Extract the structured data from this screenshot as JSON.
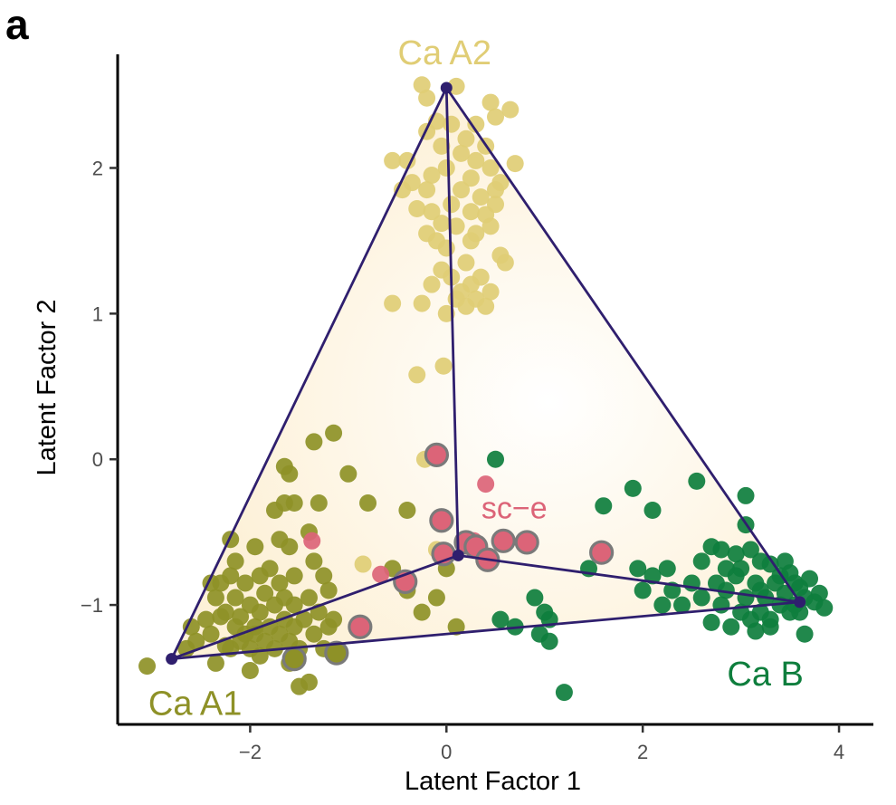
{
  "panel_label": "a",
  "colors": {
    "ca_a1": "#8e9127",
    "ca_a2": "#e0cd75",
    "ca_b": "#0e7e3d",
    "sc_e": "#dc6478",
    "simplex": "#2f1f6e",
    "highlight_ring": "#7a7a7a",
    "fill": "#fdf1d8"
  },
  "chart_data": {
    "type": "scatter",
    "title": "",
    "xlabel": "Latent Factor 1",
    "ylabel": "Latent Factor 2",
    "xlim": [
      -3.35,
      4.35
    ],
    "ylim": [
      -1.82,
      2.78
    ],
    "xticks": [
      -2,
      0,
      2,
      4
    ],
    "yticks": [
      -1,
      0,
      1,
      2
    ],
    "xtick_labels": [
      "−2",
      "0",
      "2",
      "4"
    ],
    "ytick_labels": [
      "−1",
      "0",
      "1",
      "2"
    ],
    "grid": false,
    "legend": "none",
    "vertices": [
      {
        "label": "Ca A1",
        "x": -2.8,
        "y": -1.37,
        "color_key": "ca_a1"
      },
      {
        "label": "Ca A2",
        "x": 0.0,
        "y": 2.55,
        "color_key": "ca_a2"
      },
      {
        "label": "Ca B",
        "x": 3.6,
        "y": -0.98,
        "color_key": "ca_b"
      },
      {
        "label": "sc−e",
        "x": 0.12,
        "y": -0.66,
        "color_key": "sc_e"
      }
    ],
    "series": [
      {
        "name": "Ca A2",
        "color_key": "ca_a2",
        "points": [
          [
            -0.25,
            2.57
          ],
          [
            0.1,
            2.56
          ],
          [
            -0.2,
            2.48
          ],
          [
            0.45,
            2.45
          ],
          [
            0.65,
            2.4
          ],
          [
            0.5,
            2.35
          ],
          [
            0.3,
            2.3
          ],
          [
            -0.1,
            2.32
          ],
          [
            -0.2,
            2.25
          ],
          [
            0.05,
            2.3
          ],
          [
            0.2,
            2.2
          ],
          [
            0.4,
            2.15
          ],
          [
            -0.05,
            2.15
          ],
          [
            0.15,
            2.1
          ],
          [
            0.3,
            2.05
          ],
          [
            -0.4,
            2.05
          ],
          [
            -0.55,
            2.05
          ],
          [
            0.7,
            2.03
          ],
          [
            0.45,
            2.0
          ],
          [
            0.0,
            2.0
          ],
          [
            -0.15,
            1.95
          ],
          [
            0.25,
            1.93
          ],
          [
            0.55,
            1.9
          ],
          [
            -0.35,
            1.9
          ],
          [
            0.5,
            1.85
          ],
          [
            -0.45,
            1.85
          ],
          [
            -0.2,
            1.85
          ],
          [
            0.15,
            1.85
          ],
          [
            0.35,
            1.8
          ],
          [
            0.5,
            1.75
          ],
          [
            -0.3,
            1.72
          ],
          [
            0.05,
            1.75
          ],
          [
            0.25,
            1.7
          ],
          [
            -0.15,
            1.7
          ],
          [
            0.4,
            1.68
          ],
          [
            0.45,
            1.6
          ],
          [
            -0.05,
            1.62
          ],
          [
            0.1,
            1.6
          ],
          [
            -0.2,
            1.55
          ],
          [
            0.3,
            1.55
          ],
          [
            0.25,
            1.5
          ],
          [
            -0.1,
            1.5
          ],
          [
            0.0,
            1.45
          ],
          [
            0.55,
            1.4
          ],
          [
            0.6,
            1.35
          ],
          [
            0.2,
            1.35
          ],
          [
            -0.05,
            1.3
          ],
          [
            0.35,
            1.25
          ],
          [
            0.05,
            1.25
          ],
          [
            0.25,
            1.2
          ],
          [
            0.15,
            1.15
          ],
          [
            -0.15,
            1.2
          ],
          [
            0.45,
            1.15
          ],
          [
            0.3,
            1.1
          ],
          [
            0.2,
            1.05
          ],
          [
            0.1,
            1.1
          ],
          [
            0.0,
            1.0
          ],
          [
            -0.55,
            1.07
          ],
          [
            -0.25,
            1.07
          ],
          [
            0.4,
            1.05
          ],
          [
            -0.3,
            0.58
          ],
          [
            -0.03,
            0.64
          ],
          [
            -0.22,
            0.0
          ],
          [
            -0.85,
            -0.72
          ],
          [
            -0.1,
            -0.62
          ]
        ]
      },
      {
        "name": "Ca A1",
        "color_key": "ca_a1",
        "points": [
          [
            -3.05,
            -1.42
          ],
          [
            -2.65,
            -1.3
          ],
          [
            -2.6,
            -1.15
          ],
          [
            -2.55,
            -1.25
          ],
          [
            -2.45,
            -1.1
          ],
          [
            -2.4,
            -1.2
          ],
          [
            -2.35,
            -1.4
          ],
          [
            -2.35,
            -0.95
          ],
          [
            -2.3,
            -0.85
          ],
          [
            -2.25,
            -1.28
          ],
          [
            -2.25,
            -1.05
          ],
          [
            -2.2,
            -1.3
          ],
          [
            -2.2,
            -0.8
          ],
          [
            -2.2,
            -0.55
          ],
          [
            -2.15,
            -1.15
          ],
          [
            -2.15,
            -0.95
          ],
          [
            -2.15,
            -0.7
          ],
          [
            -2.1,
            -1.25
          ],
          [
            -2.1,
            -1.08
          ],
          [
            -2.05,
            -1.2
          ],
          [
            -2.05,
            -0.85
          ],
          [
            -2.0,
            -1.45
          ],
          [
            -2.0,
            -1.3
          ],
          [
            -2.0,
            -1.0
          ],
          [
            -1.95,
            -1.15
          ],
          [
            -1.95,
            -0.6
          ],
          [
            -1.9,
            -1.35
          ],
          [
            -1.9,
            -1.05
          ],
          [
            -1.9,
            -0.8
          ],
          [
            -1.85,
            -1.25
          ],
          [
            -1.85,
            -0.92
          ],
          [
            -1.8,
            -1.15
          ],
          [
            -1.8,
            -0.75
          ],
          [
            -1.75,
            -1.3
          ],
          [
            -1.75,
            -1.0
          ],
          [
            -1.75,
            -0.35
          ],
          [
            -1.7,
            -1.2
          ],
          [
            -1.7,
            -0.85
          ],
          [
            -1.7,
            -0.55
          ],
          [
            -1.65,
            -1.1
          ],
          [
            -1.65,
            -0.95
          ],
          [
            -1.65,
            -0.3
          ],
          [
            -1.6,
            -1.25
          ],
          [
            -1.6,
            -0.6
          ],
          [
            -1.6,
            -0.1
          ],
          [
            -1.55,
            -1.15
          ],
          [
            -1.55,
            -1.0
          ],
          [
            -1.55,
            -0.8
          ],
          [
            -1.5,
            -1.56
          ],
          [
            -1.5,
            -1.3
          ],
          [
            -1.45,
            -1.1
          ],
          [
            -1.4,
            -0.95
          ],
          [
            -1.4,
            -0.5
          ],
          [
            -1.4,
            -1.53
          ],
          [
            -1.35,
            -1.2
          ],
          [
            -1.35,
            -0.7
          ],
          [
            -1.3,
            -1.05
          ],
          [
            -1.3,
            -0.3
          ],
          [
            -1.25,
            -1.3
          ],
          [
            -1.2,
            -1.15
          ],
          [
            -1.2,
            -0.9
          ],
          [
            -1.15,
            -1.1
          ],
          [
            -1.1,
            -1.35
          ],
          [
            -1.15,
            0.18
          ],
          [
            -1.35,
            0.12
          ],
          [
            -1.0,
            -0.1
          ],
          [
            -1.55,
            -0.3
          ],
          [
            -1.65,
            -0.05
          ],
          [
            -0.8,
            -0.3
          ],
          [
            -0.55,
            -0.75
          ],
          [
            -0.4,
            -0.9
          ],
          [
            -0.25,
            -1.05
          ],
          [
            -0.1,
            -0.95
          ],
          [
            0.0,
            -0.75
          ],
          [
            0.1,
            -1.15
          ],
          [
            -0.4,
            -0.35
          ],
          [
            -2.4,
            -0.85
          ],
          [
            -2.3,
            -1.08
          ],
          [
            -1.95,
            -1.2
          ],
          [
            -1.6,
            -1.4
          ],
          [
            -1.25,
            -0.8
          ]
        ]
      },
      {
        "name": "Ca B",
        "color_key": "ca_b",
        "points": [
          [
            0.5,
            0.0
          ],
          [
            1.6,
            -0.32
          ],
          [
            1.9,
            -0.2
          ],
          [
            2.1,
            -0.35
          ],
          [
            2.55,
            -0.15
          ],
          [
            3.05,
            -0.25
          ],
          [
            3.05,
            -0.45
          ],
          [
            2.7,
            -0.6
          ],
          [
            2.8,
            -0.62
          ],
          [
            2.95,
            -0.65
          ],
          [
            3.1,
            -0.62
          ],
          [
            3.2,
            -0.7
          ],
          [
            3.3,
            -0.72
          ],
          [
            3.45,
            -0.7
          ],
          [
            3.5,
            -0.78
          ],
          [
            3.55,
            -0.85
          ],
          [
            3.6,
            -0.88
          ],
          [
            3.65,
            -0.95
          ],
          [
            3.7,
            -0.82
          ],
          [
            3.75,
            -0.98
          ],
          [
            3.8,
            -0.92
          ],
          [
            3.85,
            -1.02
          ],
          [
            3.5,
            -1.05
          ],
          [
            3.45,
            -0.92
          ],
          [
            3.4,
            -1.0
          ],
          [
            3.35,
            -0.85
          ],
          [
            3.3,
            -1.1
          ],
          [
            3.25,
            -0.95
          ],
          [
            3.2,
            -1.05
          ],
          [
            3.15,
            -0.85
          ],
          [
            3.1,
            -1.1
          ],
          [
            3.05,
            -0.95
          ],
          [
            3.0,
            -1.05
          ],
          [
            2.95,
            -0.8
          ],
          [
            2.9,
            -1.15
          ],
          [
            2.85,
            -0.9
          ],
          [
            2.8,
            -1.0
          ],
          [
            2.75,
            -0.85
          ],
          [
            2.7,
            -1.12
          ],
          [
            2.6,
            -0.95
          ],
          [
            2.5,
            -0.85
          ],
          [
            2.4,
            -1.0
          ],
          [
            2.3,
            -0.9
          ],
          [
            2.25,
            -0.75
          ],
          [
            2.1,
            -0.8
          ],
          [
            2.0,
            -0.9
          ],
          [
            1.95,
            -0.75
          ],
          [
            2.2,
            -1.0
          ],
          [
            3.0,
            -0.75
          ],
          [
            3.4,
            -0.8
          ],
          [
            3.55,
            -1.0
          ],
          [
            3.6,
            -1.05
          ],
          [
            3.65,
            -1.2
          ],
          [
            3.3,
            -1.15
          ],
          [
            3.15,
            -1.18
          ],
          [
            0.9,
            -0.95
          ],
          [
            1.0,
            -1.05
          ],
          [
            1.05,
            -1.1
          ],
          [
            0.95,
            -1.2
          ],
          [
            0.7,
            -1.15
          ],
          [
            1.05,
            -1.25
          ],
          [
            0.55,
            -1.1
          ],
          [
            1.2,
            -1.6
          ],
          [
            1.45,
            -0.75
          ],
          [
            2.6,
            -0.7
          ],
          [
            2.85,
            -0.75
          ],
          [
            3.2,
            -0.9
          ]
        ]
      },
      {
        "name": "sc−e",
        "color_key": "sc_e",
        "points": [
          [
            -1.37,
            -0.56
          ],
          [
            -0.67,
            -0.79
          ],
          [
            0.4,
            -0.17
          ],
          [
            0.28,
            -0.56
          ],
          [
            -0.02,
            -0.43
          ]
        ]
      },
      {
        "name": "sc−e highlighted",
        "color_key": "sc_e",
        "ring": true,
        "points": [
          [
            -0.1,
            0.03
          ],
          [
            -0.05,
            -0.42
          ],
          [
            -0.03,
            -0.65
          ],
          [
            0.2,
            -0.57
          ],
          [
            0.3,
            -0.6
          ],
          [
            0.42,
            -0.69
          ],
          [
            0.58,
            -0.56
          ],
          [
            0.82,
            -0.57
          ],
          [
            1.58,
            -0.64
          ],
          [
            -0.42,
            -0.84
          ],
          [
            -0.88,
            -1.15
          ]
        ]
      },
      {
        "name": "Ca A1 highlighted",
        "color_key": "ca_a1",
        "ring": true,
        "points": [
          [
            -1.55,
            -1.37
          ],
          [
            -1.12,
            -1.33
          ]
        ]
      }
    ]
  }
}
